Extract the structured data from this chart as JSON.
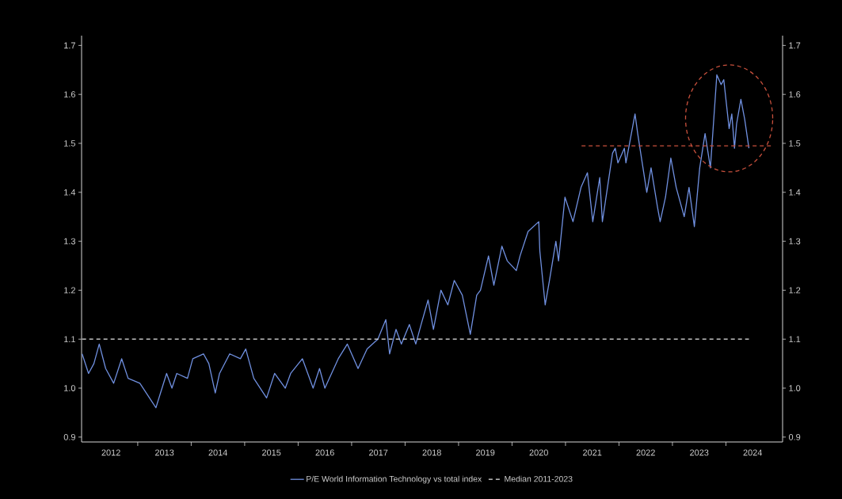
{
  "chart_data": {
    "type": "line",
    "x": [
      2011.46,
      2011.58,
      2011.68,
      2011.78,
      2011.9,
      2012.05,
      2012.2,
      2012.32,
      2012.54,
      2012.84,
      2013.04,
      2013.14,
      2013.23,
      2013.43,
      2013.53,
      2013.73,
      2013.83,
      2013.95,
      2014.03,
      2014.22,
      2014.42,
      2014.52,
      2014.67,
      2014.91,
      2015.06,
      2015.26,
      2015.36,
      2015.58,
      2015.78,
      2015.9,
      2016.0,
      2016.25,
      2016.42,
      2016.62,
      2016.79,
      2016.99,
      2017.14,
      2017.21,
      2017.33,
      2017.43,
      2017.58,
      2017.7,
      2017.8,
      2017.93,
      2018.03,
      2018.17,
      2018.3,
      2018.42,
      2018.57,
      2018.72,
      2018.84,
      2018.91,
      2019.06,
      2019.16,
      2019.31,
      2019.41,
      2019.58,
      2019.65,
      2019.8,
      2020.0,
      2020.02,
      2020.12,
      2020.2,
      2020.32,
      2020.37,
      2020.49,
      2020.64,
      2020.79,
      2020.91,
      2021.01,
      2021.14,
      2021.19,
      2021.38,
      2021.43,
      2021.48,
      2021.6,
      2021.63,
      2021.8,
      2021.85,
      2022.02,
      2022.1,
      2022.22,
      2022.27,
      2022.37,
      2022.47,
      2022.57,
      2022.72,
      2022.81,
      2022.91,
      2023.01,
      2023.11,
      2023.21,
      2023.33,
      2023.41,
      2023.46,
      2023.56,
      2023.61,
      2023.66,
      2023.7,
      2023.78,
      2023.85,
      2023.93
    ],
    "series": [
      {
        "name": "P/E World Information Technology vs total index",
        "color": "#7090e0",
        "values": [
          1.07,
          1.03,
          1.05,
          1.09,
          1.04,
          1.01,
          1.06,
          1.02,
          1.01,
          0.96,
          1.03,
          1.0,
          1.03,
          1.02,
          1.06,
          1.07,
          1.05,
          0.99,
          1.03,
          1.07,
          1.06,
          1.08,
          1.02,
          0.98,
          1.03,
          1.0,
          1.03,
          1.06,
          1.0,
          1.04,
          1.0,
          1.06,
          1.09,
          1.04,
          1.08,
          1.1,
          1.14,
          1.07,
          1.12,
          1.09,
          1.13,
          1.09,
          1.13,
          1.18,
          1.12,
          1.2,
          1.17,
          1.22,
          1.19,
          1.11,
          1.19,
          1.2,
          1.27,
          1.21,
          1.29,
          1.26,
          1.24,
          1.27,
          1.32,
          1.34,
          1.28,
          1.17,
          1.22,
          1.3,
          1.26,
          1.39,
          1.34,
          1.41,
          1.44,
          1.34,
          1.43,
          1.34,
          1.48,
          1.49,
          1.46,
          1.49,
          1.46,
          1.56,
          1.52,
          1.4,
          1.45,
          1.37,
          1.34,
          1.39,
          1.47,
          1.41,
          1.35,
          1.41,
          1.33,
          1.45,
          1.52,
          1.45,
          1.64,
          1.62,
          1.63,
          1.53,
          1.56,
          1.49,
          1.54,
          1.59,
          1.55,
          1.49
        ]
      },
      {
        "name": "Median 2011-2023",
        "color": "#e6e6e6",
        "line_style": "dashed",
        "x": [
          2011.46,
          2023.93
        ],
        "values": [
          1.1,
          1.1
        ]
      },
      {
        "color": "#c8503c",
        "line_style": "dashed",
        "x": [
          2020.8,
          2024.34
        ],
        "values": [
          1.495,
          1.495
        ]
      }
    ],
    "xlim": [
      2011.45,
      2024.56
    ],
    "xticks": [
      2012,
      2013,
      2014,
      2015,
      2016,
      2017,
      2018,
      2019,
      2020,
      2021,
      2022,
      2023,
      2024
    ],
    "ylim": [
      0.89,
      1.72
    ],
    "yticks": [
      {
        "value": 0.9,
        "label": "0.9"
      },
      {
        "value": 1.0,
        "label": "1.0"
      },
      {
        "value": 1.1,
        "label": "1.1"
      },
      {
        "value": 1.2,
        "label": "1.2"
      },
      {
        "value": 1.3,
        "label": "1.3"
      },
      {
        "value": 1.4,
        "label": "1.4"
      },
      {
        "value": 1.5,
        "label": "1.5"
      },
      {
        "value": 1.6,
        "label": "1.6"
      },
      {
        "value": 1.7,
        "label": "1.7"
      }
    ],
    "y2lim": [
      0.89,
      1.72
    ],
    "y2ticks": [
      {
        "value": 0.9,
        "label": "0.9"
      },
      {
        "value": 1.0,
        "label": "1.0"
      },
      {
        "value": 1.1,
        "label": "1.1"
      },
      {
        "value": 1.2,
        "label": "1.2"
      },
      {
        "value": 1.3,
        "label": "1.3"
      },
      {
        "value": 1.4,
        "label": "1.4"
      },
      {
        "value": 1.5,
        "label": "1.5"
      },
      {
        "value": 1.6,
        "label": "1.6"
      },
      {
        "value": 1.7,
        "label": "1.7"
      }
    ],
    "legend": "bottom"
  }
}
